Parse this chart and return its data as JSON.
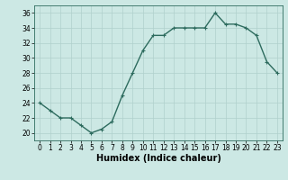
{
  "x": [
    0,
    1,
    2,
    3,
    4,
    5,
    6,
    7,
    8,
    9,
    10,
    11,
    12,
    13,
    14,
    15,
    16,
    17,
    18,
    19,
    20,
    21,
    22,
    23
  ],
  "y": [
    24,
    23,
    22,
    22,
    21,
    20,
    20.5,
    21.5,
    25,
    28,
    31,
    33,
    33,
    34,
    34,
    34,
    34,
    36,
    34.5,
    34.5,
    34,
    33,
    29.5,
    28
  ],
  "line_color": "#2d6b5e",
  "marker_color": "#2d6b5e",
  "bg_color": "#cce8e4",
  "grid_color": "#b0d0cc",
  "xlabel": "Humidex (Indice chaleur)",
  "xlim": [
    -0.5,
    23.5
  ],
  "ylim": [
    19,
    37
  ],
  "yticks": [
    20,
    22,
    24,
    26,
    28,
    30,
    32,
    34,
    36
  ],
  "xticks": [
    0,
    1,
    2,
    3,
    4,
    5,
    6,
    7,
    8,
    9,
    10,
    11,
    12,
    13,
    14,
    15,
    16,
    17,
    18,
    19,
    20,
    21,
    22,
    23
  ],
  "tick_fontsize": 5.5,
  "xlabel_fontsize": 7.0,
  "line_width": 1.0,
  "marker_size": 2.5
}
